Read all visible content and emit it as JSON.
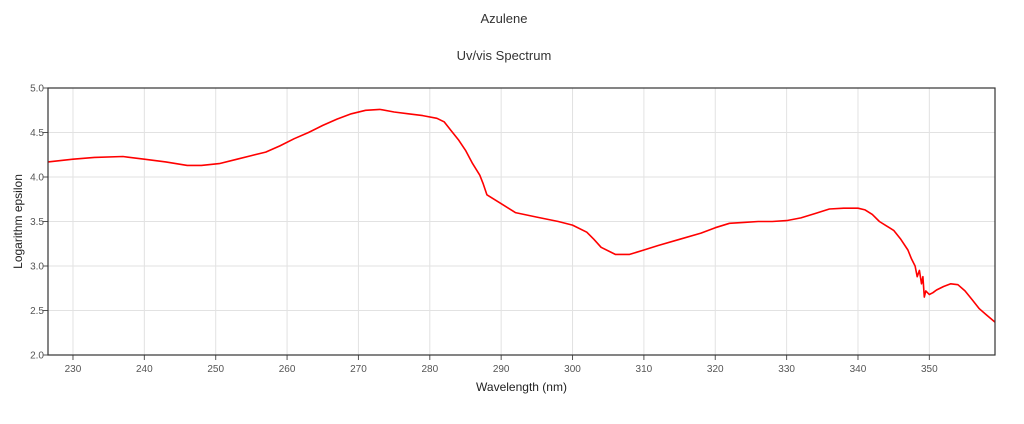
{
  "chart_data": {
    "type": "line",
    "title": "Azulene",
    "subtitle": "Uv/vis Spectrum",
    "xlabel": "Wavelength (nm)",
    "ylabel": "Logarithm epsilon",
    "xlim": [
      226.5,
      359.2
    ],
    "ylim": [
      2.0,
      5.0
    ],
    "x_ticks": [
      "230",
      "240",
      "250",
      "260",
      "270",
      "280",
      "290",
      "300",
      "310",
      "320",
      "330",
      "340",
      "350"
    ],
    "y_ticks": [
      "2.0",
      "2.5",
      "3.0",
      "3.5",
      "4.0",
      "4.5",
      "5.0"
    ],
    "grid": true,
    "line_color": "#ff0000",
    "series": [
      {
        "x": [
          226.5,
          230,
          233,
          237,
          240,
          243,
          246,
          248,
          250.5,
          253,
          255,
          257,
          259,
          261,
          263,
          265,
          267,
          269,
          271,
          273,
          275,
          277,
          279,
          281,
          282,
          283,
          284,
          285,
          286,
          287,
          287.5,
          288,
          290,
          292,
          295,
          298,
          300,
          302,
          303,
          304,
          306,
          308,
          310,
          312,
          315,
          318,
          320,
          322,
          324,
          326,
          328,
          330,
          332,
          334,
          336,
          338,
          340,
          341,
          342,
          343,
          344,
          345,
          346,
          347,
          347.5,
          348,
          348.3,
          348.6,
          348.9,
          349.1,
          349.3,
          349.5,
          350,
          350.5,
          351,
          352,
          353,
          354,
          355,
          356,
          357,
          358,
          359.2
        ],
        "y": [
          4.17,
          4.2,
          4.22,
          4.23,
          4.2,
          4.17,
          4.13,
          4.13,
          4.15,
          4.2,
          4.24,
          4.28,
          4.35,
          4.43,
          4.5,
          4.58,
          4.65,
          4.71,
          4.75,
          4.76,
          4.73,
          4.71,
          4.69,
          4.66,
          4.62,
          4.52,
          4.42,
          4.3,
          4.15,
          4.02,
          3.92,
          3.8,
          3.7,
          3.6,
          3.55,
          3.5,
          3.46,
          3.38,
          3.3,
          3.21,
          3.13,
          3.13,
          3.18,
          3.23,
          3.3,
          3.37,
          3.43,
          3.48,
          3.49,
          3.5,
          3.5,
          3.51,
          3.54,
          3.59,
          3.64,
          3.65,
          3.65,
          3.63,
          3.58,
          3.5,
          3.45,
          3.4,
          3.3,
          3.18,
          3.08,
          3.0,
          2.88,
          2.95,
          2.8,
          2.88,
          2.65,
          2.72,
          2.68,
          2.7,
          2.73,
          2.77,
          2.8,
          2.79,
          2.72,
          2.62,
          2.52,
          2.45,
          2.37
        ]
      }
    ]
  }
}
